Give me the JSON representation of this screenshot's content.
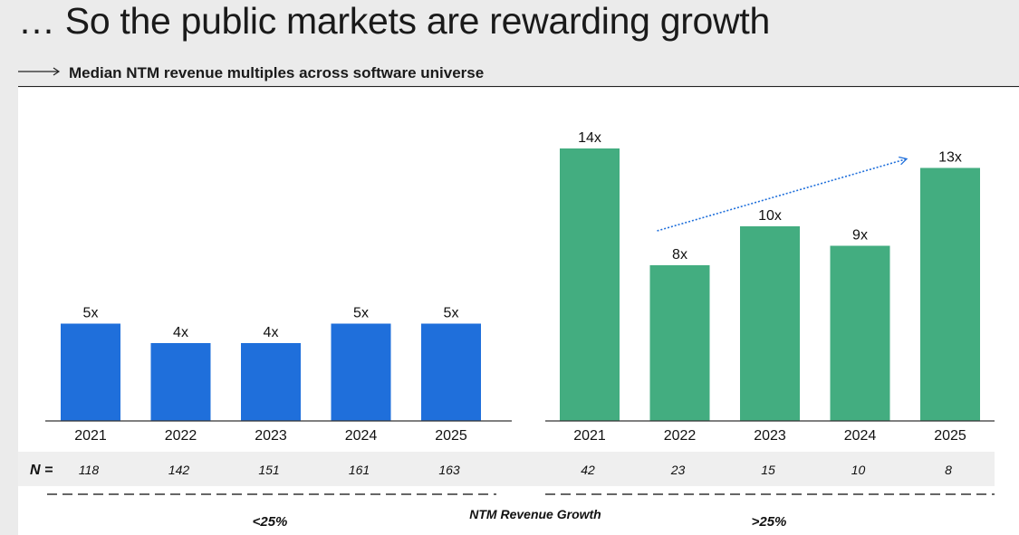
{
  "header": {
    "title": "… So the public markets are rewarding growth",
    "subtitle": "Median NTM revenue multiples across software universe"
  },
  "chart_data": [
    {
      "type": "bar",
      "group": "<25%",
      "categories": [
        "2021",
        "2022",
        "2023",
        "2024",
        "2025"
      ],
      "values": [
        5,
        4,
        4,
        5,
        5
      ],
      "value_labels": [
        "5x",
        "4x",
        "4x",
        "5x",
        "5x"
      ],
      "n": [
        "118",
        "142",
        "151",
        "161",
        "163"
      ],
      "color": "#1f6fdb"
    },
    {
      "type": "bar",
      "group": ">25%",
      "categories": [
        "2021",
        "2022",
        "2023",
        "2024",
        "2025"
      ],
      "values": [
        14,
        8,
        10,
        9,
        13
      ],
      "value_labels": [
        "14x",
        "8x",
        "10x",
        "9x",
        "13x"
      ],
      "n": [
        "42",
        "23",
        "15",
        "10",
        "8"
      ],
      "color": "#43ad80",
      "trend_arrow": {
        "from": "2022",
        "to": "2025",
        "color": "#1f6fdb",
        "style": "dotted"
      }
    }
  ],
  "n_label": "N =",
  "axis_title": "NTM Revenue Growth",
  "colors": {
    "blue": "#1f6fdb",
    "green": "#43ad80",
    "n_row_bg": "#efefef"
  }
}
